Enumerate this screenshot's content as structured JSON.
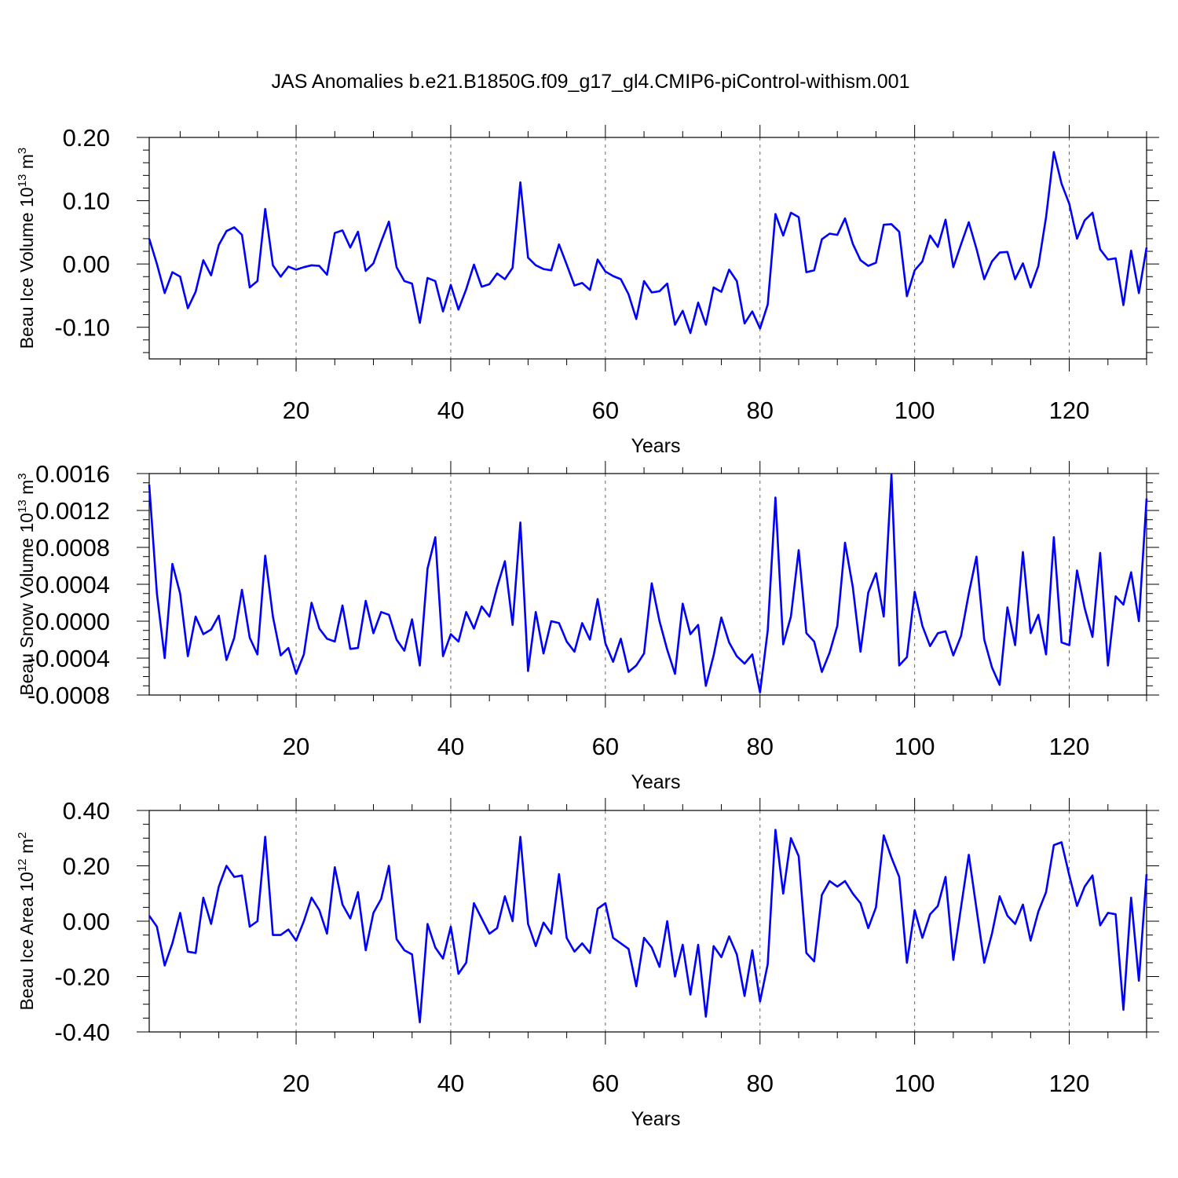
{
  "figure": {
    "title": "JAS Anomalies b.e21.B1850G.f09_g17_gl4.CMIP6-piControl-withism.001"
  },
  "chart_data": [
    {
      "type": "line",
      "title": "",
      "xlabel": "Years",
      "ylabel": "Beau Ice Volume 10",
      "ylabel_exp": "13",
      "ylabel_unit": " m",
      "ylabel_unit_exp": "3",
      "xlim": [
        1,
        130
      ],
      "ylim": [
        -0.15,
        0.2
      ],
      "xticks": [
        20,
        40,
        60,
        80,
        100,
        120
      ],
      "xtick_labels": [
        "20",
        "40",
        "60",
        "80",
        "100",
        "120"
      ],
      "yticks": [
        0.2,
        0.1,
        0.0,
        -0.1
      ],
      "ytick_labels": [
        "0.20",
        "0.10",
        "0.00",
        "-0.10"
      ],
      "grid": "x-dashed",
      "line_color": "#0000ff",
      "series": [
        {
          "values": [
            0.04,
            0.0,
            -0.046,
            -0.013,
            -0.02,
            -0.07,
            -0.044,
            0.006,
            -0.018,
            0.03,
            0.052,
            0.058,
            0.046,
            -0.037,
            -0.027,
            0.087,
            -0.002,
            -0.02,
            -0.004,
            -0.009,
            -0.005,
            -0.002,
            -0.003,
            -0.017,
            0.049,
            0.053,
            0.026,
            0.051,
            -0.011,
            0.001,
            0.035,
            0.067,
            -0.005,
            -0.027,
            -0.031,
            -0.093,
            -0.022,
            -0.027,
            -0.075,
            -0.033,
            -0.072,
            -0.04,
            -0.001,
            -0.036,
            -0.032,
            -0.015,
            -0.024,
            -0.006,
            0.129,
            0.01,
            -0.002,
            -0.008,
            -0.01,
            0.031,
            -0.001,
            -0.034,
            -0.03,
            -0.041,
            0.007,
            -0.012,
            -0.019,
            -0.024,
            -0.048,
            -0.087,
            -0.027,
            -0.045,
            -0.043,
            -0.031,
            -0.096,
            -0.074,
            -0.109,
            -0.061,
            -0.096,
            -0.037,
            -0.044,
            -0.009,
            -0.027,
            -0.094,
            -0.075,
            -0.102,
            -0.064,
            0.079,
            0.045,
            0.081,
            0.074,
            -0.013,
            -0.01,
            0.039,
            0.048,
            0.046,
            0.072,
            0.032,
            0.006,
            -0.003,
            0.002,
            0.062,
            0.063,
            0.051,
            -0.051,
            -0.01,
            0.004,
            0.045,
            0.027,
            0.07,
            -0.005,
            0.031,
            0.066,
            0.024,
            -0.024,
            0.004,
            0.018,
            0.019,
            -0.024,
            0.001,
            -0.037,
            -0.003,
            0.074,
            0.177,
            0.127,
            0.095,
            0.04,
            0.069,
            0.081,
            0.023,
            0.007,
            0.009,
            -0.065,
            0.021,
            -0.046,
            0.026
          ]
        }
      ]
    },
    {
      "type": "line",
      "title": "",
      "xlabel": "Years",
      "ylabel": "Beau Snow Volume 10",
      "ylabel_exp": "13",
      "ylabel_unit": " m",
      "ylabel_unit_exp": "3",
      "xlim": [
        1,
        130
      ],
      "ylim": [
        -0.0008,
        0.0016
      ],
      "xticks": [
        20,
        40,
        60,
        80,
        100,
        120
      ],
      "xtick_labels": [
        "20",
        "40",
        "60",
        "80",
        "100",
        "120"
      ],
      "yticks": [
        0.0016,
        0.0012,
        0.0008,
        0.0004,
        0.0,
        -0.0004,
        -0.0008
      ],
      "ytick_labels": [
        "0.0016",
        "0.0012",
        "0.0008",
        "0.0004",
        "0.0000",
        "-0.0004",
        "-0.0008"
      ],
      "grid": "x-dashed",
      "line_color": "#0000ff",
      "series": [
        {
          "values": [
            0.00148,
            0.0003,
            -0.0004,
            0.00062,
            0.0003,
            -0.00038,
            5e-05,
            -0.00014,
            -9e-05,
            6e-05,
            -0.00042,
            -0.00018,
            0.00034,
            -0.00018,
            -0.00036,
            0.00071,
            5e-05,
            -0.00037,
            -0.00029,
            -0.00057,
            -0.00036,
            0.0002,
            -8e-05,
            -0.00019,
            -0.00022,
            0.00017,
            -0.0003,
            -0.00029,
            0.00022,
            -0.00013,
            0.0001,
            7e-05,
            -0.0002,
            -0.00032,
            2e-05,
            -0.00048,
            0.00057,
            0.00091,
            -0.00038,
            -0.00014,
            -0.00022,
            0.0001,
            -8e-05,
            0.00016,
            5e-05,
            0.00037,
            0.00065,
            -4e-05,
            0.00107,
            -0.00054,
            0.0001,
            -0.00035,
            0.0,
            -2e-05,
            -0.00022,
            -0.00033,
            -2e-05,
            -0.0002,
            0.00024,
            -0.00024,
            -0.00044,
            -0.00019,
            -0.00055,
            -0.00048,
            -0.00035,
            0.00041,
            0.0,
            -0.00031,
            -0.00057,
            0.00019,
            -0.00014,
            -4e-05,
            -0.0007,
            -0.00037,
            4e-05,
            -0.00023,
            -0.00038,
            -0.00046,
            -0.00036,
            -0.00077,
            -0.0001,
            0.00134,
            -0.00025,
            5e-05,
            0.00077,
            -0.00013,
            -0.00022,
            -0.00055,
            -0.00034,
            -5e-05,
            0.00085,
            0.00037,
            -0.00033,
            0.00031,
            0.00052,
            5e-05,
            0.00159,
            -0.00048,
            -0.00039,
            0.00032,
            -5e-05,
            -0.00027,
            -0.00013,
            -0.00011,
            -0.00037,
            -0.00016,
            0.0003,
            0.0007,
            -0.0002,
            -0.0005,
            -0.00069,
            0.00015,
            -0.00026,
            0.00075,
            -0.00013,
            7e-05,
            -0.00036,
            0.00091,
            -0.00023,
            -0.00026,
            0.00055,
            0.00014,
            -0.00017,
            0.00074,
            -0.00048,
            0.00027,
            0.00018,
            0.00053,
            0.0,
            0.00133
          ]
        }
      ]
    },
    {
      "type": "line",
      "title": "",
      "xlabel": "Years",
      "ylabel": "Beau Ice Area 10",
      "ylabel_exp": "12",
      "ylabel_unit": " m",
      "ylabel_unit_exp": "2",
      "xlim": [
        1,
        130
      ],
      "ylim": [
        -0.4,
        0.4
      ],
      "xticks": [
        20,
        40,
        60,
        80,
        100,
        120
      ],
      "xtick_labels": [
        "20",
        "40",
        "60",
        "80",
        "100",
        "120"
      ],
      "yticks": [
        0.4,
        0.2,
        0.0,
        -0.2,
        -0.4
      ],
      "ytick_labels": [
        "0.40",
        "0.20",
        "0.00",
        "-0.20",
        "-0.40"
      ],
      "grid": "x-dashed",
      "line_color": "#0000ff",
      "series": [
        {
          "values": [
            0.02,
            -0.02,
            -0.16,
            -0.08,
            0.03,
            -0.11,
            -0.115,
            0.085,
            -0.01,
            0.125,
            0.2,
            0.16,
            0.165,
            -0.02,
            0.0,
            0.305,
            -0.05,
            -0.05,
            -0.03,
            -0.07,
            0.0,
            0.085,
            0.04,
            -0.045,
            0.195,
            0.06,
            0.01,
            0.105,
            -0.105,
            0.03,
            0.08,
            0.2,
            -0.065,
            -0.105,
            -0.12,
            -0.365,
            -0.01,
            -0.095,
            -0.135,
            -0.02,
            -0.19,
            -0.15,
            0.065,
            0.01,
            -0.045,
            -0.025,
            0.09,
            0.0,
            0.305,
            -0.01,
            -0.09,
            -0.005,
            -0.045,
            0.17,
            -0.06,
            -0.11,
            -0.08,
            -0.115,
            0.045,
            0.065,
            -0.06,
            -0.08,
            -0.1,
            -0.235,
            -0.06,
            -0.095,
            -0.165,
            0.0,
            -0.2,
            -0.085,
            -0.265,
            -0.085,
            -0.345,
            -0.09,
            -0.13,
            -0.055,
            -0.12,
            -0.27,
            -0.105,
            -0.29,
            -0.155,
            0.33,
            0.1,
            0.3,
            0.235,
            -0.115,
            -0.145,
            0.095,
            0.145,
            0.125,
            0.145,
            0.1,
            0.065,
            -0.025,
            0.05,
            0.31,
            0.23,
            0.16,
            -0.15,
            0.04,
            -0.06,
            0.025,
            0.055,
            0.16,
            -0.14,
            0.05,
            0.24,
            0.045,
            -0.15,
            -0.045,
            0.09,
            0.02,
            -0.01,
            0.06,
            -0.07,
            0.035,
            0.105,
            0.275,
            0.285,
            0.165,
            0.055,
            0.125,
            0.165,
            -0.015,
            0.03,
            0.025,
            -0.32,
            0.085,
            -0.215,
            0.17
          ]
        }
      ]
    }
  ]
}
